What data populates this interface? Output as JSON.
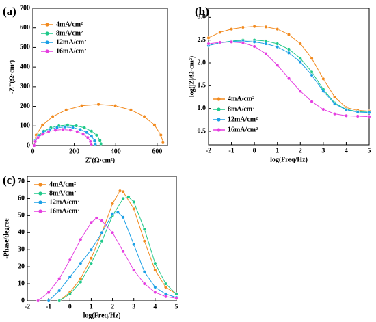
{
  "chart_data": [
    {
      "type": "line",
      "label": "(a)",
      "xlabel": "Z'(Ω·cm²)",
      "ylabel": "-Z''(Ω·cm²)",
      "xlim": [
        0,
        650
      ],
      "xticks": [
        0,
        200,
        400,
        600
      ],
      "ylim": [
        0,
        700
      ],
      "yticks": [
        0,
        100,
        200,
        300,
        400,
        500,
        600,
        700
      ],
      "series": [
        {
          "name": "4mA/cm²",
          "color": "#f28a1e",
          "x": [
            5,
            16,
            47,
            96,
            161,
            236,
            317,
            398,
            473,
            538,
            587,
            618,
            628
          ],
          "values": [
            0,
            54,
            105,
            148,
            182,
            203,
            210,
            203,
            182,
            148,
            105,
            54,
            18
          ]
        },
        {
          "name": "8mA/cm²",
          "color": "#1fc98a",
          "x": [
            6,
            12,
            28,
            53,
            87,
            126,
            168,
            210,
            249,
            283,
            308,
            324,
            329
          ],
          "values": [
            0,
            27,
            53,
            74,
            91,
            101,
            105,
            101,
            91,
            74,
            53,
            27,
            9
          ]
        },
        {
          "name": "12mA/cm²",
          "color": "#1a9fe6",
          "x": [
            7,
            12,
            27,
            50,
            81,
            117,
            155,
            193,
            229,
            260,
            283,
            298,
            302
          ],
          "values": [
            0,
            25,
            48,
            67,
            82,
            92,
            95,
            92,
            82,
            67,
            48,
            25,
            8
          ]
        },
        {
          "name": "16mA/cm²",
          "color": "#e53ee0",
          "x": [
            7,
            12,
            25,
            47,
            76,
            109,
            145,
            181,
            214,
            243,
            265,
            278,
            282
          ],
          "values": [
            0,
            21,
            41,
            58,
            71,
            79,
            82,
            79,
            71,
            58,
            41,
            21,
            7
          ]
        }
      ]
    },
    {
      "type": "line",
      "label": "(b)",
      "xlabel": "log(Freq/Hz)",
      "ylabel": "log(|Z|/Ω·cm²)",
      "xlim": [
        -2,
        5
      ],
      "xticks": [
        -2,
        -1,
        0,
        1,
        2,
        3,
        4,
        5
      ],
      "ylim": [
        0.2,
        3.2
      ],
      "yticks": [
        0.5,
        {
          "value": 1,
          "label": "1.0"
        },
        1.5,
        {
          "value": 2,
          "label": "2.0"
        },
        2.5,
        {
          "value": 3,
          "label": "3.0"
        }
      ],
      "series": [
        {
          "name": "4mA/cm²",
          "color": "#f28a1e",
          "x": [
            -2,
            -1.5,
            -1,
            -0.5,
            0,
            0.5,
            1,
            1.5,
            2,
            2.5,
            3,
            3.5,
            4,
            4.5,
            5
          ],
          "values": [
            2.55,
            2.67,
            2.74,
            2.78,
            2.8,
            2.79,
            2.74,
            2.62,
            2.42,
            2.1,
            1.65,
            1.25,
            1.02,
            0.96,
            0.94
          ]
        },
        {
          "name": "8mA/cm²",
          "color": "#1fc98a",
          "x": [
            -2,
            -1.5,
            -1,
            -0.5,
            0,
            0.5,
            1,
            1.5,
            2,
            2.5,
            3,
            3.5,
            4,
            4.5,
            5
          ],
          "values": [
            2.38,
            2.44,
            2.48,
            2.5,
            2.5,
            2.48,
            2.42,
            2.3,
            2.1,
            1.8,
            1.42,
            1.12,
            0.98,
            0.93,
            0.92
          ]
        },
        {
          "name": "12mA/cm²",
          "color": "#1a9fe6",
          "x": [
            -2,
            -1.5,
            -1,
            -0.5,
            0,
            0.5,
            1,
            1.5,
            2,
            2.5,
            3,
            3.5,
            4,
            4.5,
            5
          ],
          "values": [
            2.38,
            2.44,
            2.47,
            2.48,
            2.46,
            2.42,
            2.35,
            2.22,
            2.02,
            1.73,
            1.38,
            1.1,
            0.97,
            0.92,
            0.91
          ]
        },
        {
          "name": "16mA/cm²",
          "color": "#e53ee0",
          "x": [
            -2,
            -1.5,
            -1,
            -0.5,
            0,
            0.5,
            1,
            1.5,
            2,
            2.5,
            3,
            3.5,
            4,
            4.5,
            5
          ],
          "values": [
            2.42,
            2.45,
            2.46,
            2.44,
            2.36,
            2.2,
            1.95,
            1.66,
            1.38,
            1.15,
            0.98,
            0.88,
            0.84,
            0.83,
            0.82
          ]
        }
      ]
    },
    {
      "type": "line",
      "label": "(c)",
      "xlabel": "log(Freq/Hz)",
      "ylabel": "-Phase/degree",
      "xlim": [
        -2,
        5
      ],
      "xticks": [
        -2,
        -1,
        0,
        1,
        2,
        3,
        4,
        5
      ],
      "ylim": [
        0,
        73
      ],
      "yticks": [
        0,
        10,
        20,
        30,
        40,
        50,
        60,
        70
      ],
      "series": [
        {
          "name": "4mA/cm²",
          "color": "#f28a1e",
          "x": [
            -0.5,
            0,
            0.5,
            1,
            1.5,
            2,
            2.35,
            2.5,
            3,
            3.5,
            4,
            4.5,
            5
          ],
          "values": [
            0,
            5,
            13,
            25,
            40,
            57,
            64.5,
            64,
            54,
            35,
            18,
            8,
            4
          ]
        },
        {
          "name": "8mA/cm²",
          "color": "#1fc98a",
          "x": [
            -0.5,
            0,
            0.5,
            1,
            1.5,
            2,
            2.5,
            2.75,
            3,
            3.5,
            4,
            4.5,
            5
          ],
          "values": [
            0,
            4,
            11,
            22,
            35,
            50,
            60,
            61,
            58,
            42,
            22,
            10,
            4
          ]
        },
        {
          "name": "12mA/cm²",
          "color": "#1a9fe6",
          "x": [
            -1,
            -0.5,
            0,
            0.5,
            1,
            1.5,
            2,
            2.25,
            2.5,
            3,
            3.5,
            4,
            4.5,
            5
          ],
          "values": [
            0,
            6,
            14,
            22,
            30,
            40,
            51,
            52,
            49,
            33,
            17,
            8,
            4,
            2
          ]
        },
        {
          "name": "16mA/cm²",
          "color": "#e53ee0",
          "x": [
            -1.5,
            -1,
            -0.5,
            0,
            0.5,
            1,
            1.25,
            1.5,
            2,
            2.5,
            3,
            3.5,
            4,
            4.5,
            5
          ],
          "values": [
            0,
            5,
            13,
            24,
            36,
            46,
            48.5,
            47,
            40,
            29,
            18,
            10,
            5,
            2.5,
            1.5
          ]
        }
      ]
    }
  ]
}
